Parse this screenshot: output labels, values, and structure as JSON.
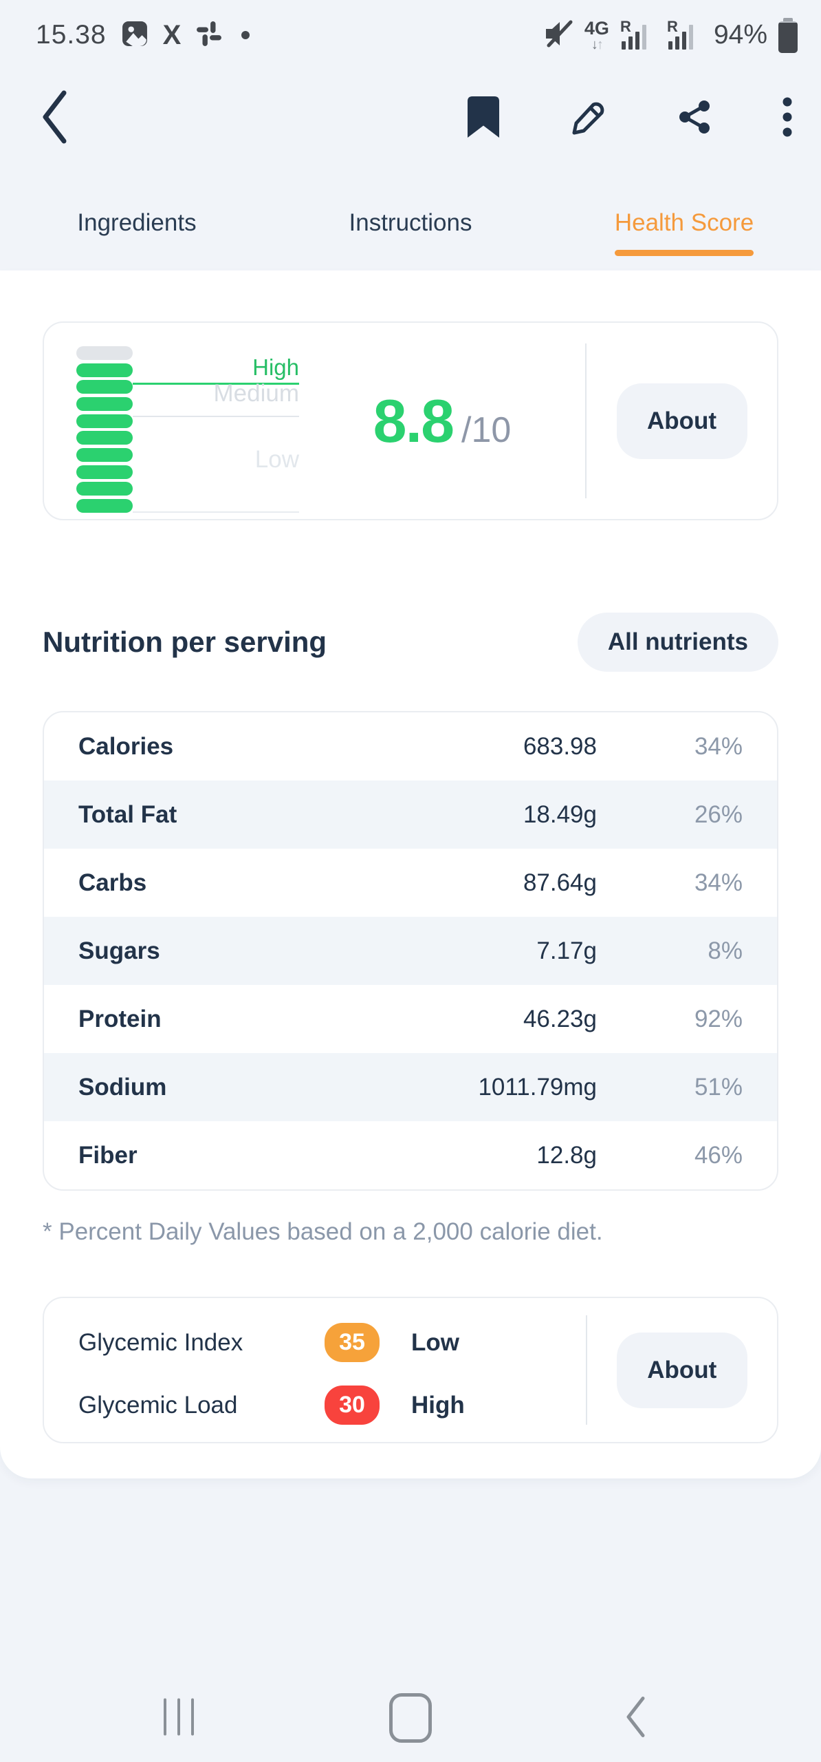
{
  "colors": {
    "accent_orange": "#F59A3C",
    "green": "#2BD16F",
    "badge_orange": "#F6A23A",
    "red": "#F8433D",
    "navy": "#223349",
    "muted_text": "#8C98A9",
    "page_bg": "#F1F4F9",
    "card_border": "#EAEDF1",
    "row_alt_bg": "#F1F5F9",
    "button_bg": "#F0F3F8",
    "divider": "#E3E7EC",
    "level_medium": "#D8DDE3",
    "level_low": "#E2E7EC",
    "status_icon": "#43474D",
    "nav_icon": "#8A9097"
  },
  "status_bar": {
    "time": "15.38",
    "network_type": "4G",
    "arrow_down": "↓",
    "arrow_up": "↑",
    "roaming_label_1": "R",
    "roaming_label_2": "R",
    "battery_percent": "94%",
    "x_glyph": "X"
  },
  "tabs": [
    {
      "label": "Ingredients",
      "active": false
    },
    {
      "label": "Instructions",
      "active": false
    },
    {
      "label": "Health Score",
      "active": true
    }
  ],
  "health_score": {
    "score": "8.8",
    "max_label": "/10",
    "levels": {
      "high": "High",
      "medium": "Medium",
      "low": "Low"
    },
    "meter": {
      "segments_total": 10,
      "segments_filled": 9
    },
    "about_label": "About"
  },
  "nutrition": {
    "title": "Nutrition per serving",
    "all_nutrients_label": "All nutrients",
    "rows": [
      {
        "name": "Calories",
        "value": "683.98",
        "daily_value": "34%"
      },
      {
        "name": "Total Fat",
        "value": "18.49g",
        "daily_value": "26%"
      },
      {
        "name": "Carbs",
        "value": "87.64g",
        "daily_value": "34%"
      },
      {
        "name": "Sugars",
        "value": "7.17g",
        "daily_value": "8%"
      },
      {
        "name": "Protein",
        "value": "46.23g",
        "daily_value": "92%"
      },
      {
        "name": "Sodium",
        "value": "1011.79mg",
        "daily_value": "51%"
      },
      {
        "name": "Fiber",
        "value": "12.8g",
        "daily_value": "46%"
      }
    ],
    "footnote": "* Percent Daily Values based on a 2,000 calorie diet."
  },
  "glycemic": {
    "rows": [
      {
        "name": "Glycemic Index",
        "badge": "35",
        "level": "Low"
      },
      {
        "name": "Glycemic Load",
        "badge": "30",
        "level": "High"
      }
    ],
    "about_label": "About"
  }
}
